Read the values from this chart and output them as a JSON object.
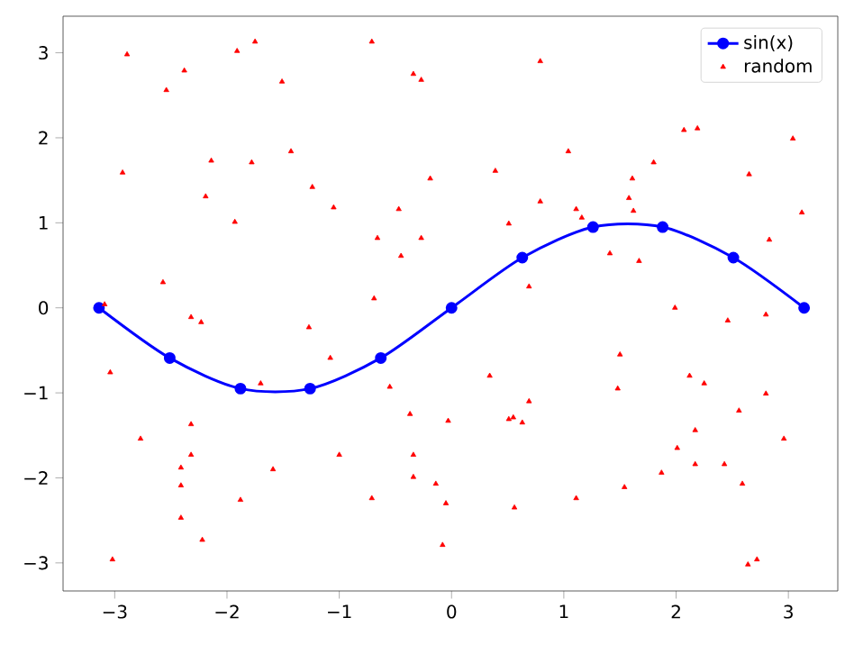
{
  "chart_data": {
    "type": "scatter",
    "xlim": [
      -3.46,
      3.44
    ],
    "ylim": [
      -3.33,
      3.43
    ],
    "xticks": [
      {
        "value": -3,
        "label": "−3"
      },
      {
        "value": -2,
        "label": "−2"
      },
      {
        "value": -1,
        "label": "−1"
      },
      0,
      1,
      2,
      3
    ],
    "yticks": [
      {
        "value": -3,
        "label": "−3"
      },
      {
        "value": -2,
        "label": "−2"
      },
      {
        "value": -1,
        "label": "−1"
      },
      0,
      1,
      2,
      3
    ],
    "legend": "top right",
    "series": [
      {
        "name": "sin(x)",
        "type": "line",
        "color": "#0000ff",
        "marker": "circle",
        "x": [
          -3.14,
          -2.51,
          -1.88,
          -1.26,
          -0.63,
          0,
          0.63,
          1.26,
          1.88,
          2.51,
          3.14
        ],
        "values": [
          0,
          -0.59,
          -0.95,
          -0.95,
          -0.59,
          0,
          0.59,
          0.95,
          0.95,
          0.59,
          0
        ]
      },
      {
        "name": "random",
        "color": "#ff0000",
        "marker": "triangle",
        "x": [
          -2.89,
          -2.38,
          -2.54,
          -1.91,
          -1.75,
          -1.51,
          -0.71,
          -0.34,
          -0.27,
          -2.93,
          -2.14,
          -1.78,
          -1.43,
          -2.19,
          -1.93,
          -1.24,
          -1.05,
          -0.47,
          -0.19,
          -0.66,
          -0.27,
          -0.45,
          -2.57,
          -0.69,
          -3.09,
          -2.32,
          -2.23,
          0.79,
          2.07,
          2.19,
          3.04,
          1.04,
          0.39,
          1.8,
          1.61,
          2.65,
          0.79,
          1.58,
          1.62,
          1.11,
          1.16,
          3.12,
          0.51,
          2.83,
          1.41,
          1.67,
          0.69,
          1.99,
          2.46,
          2.8,
          -3.04,
          -1.7,
          -1.27,
          -1.08,
          -0.55,
          -2.77,
          -2.32,
          -2.32,
          -2.41,
          -2.41,
          -2.41,
          -2.22,
          -3.02,
          -1.59,
          -1.88,
          -1.0,
          -0.71,
          -0.37,
          -0.34,
          -0.34,
          -0.14,
          -0.05,
          -0.08,
          -0.03,
          0.34,
          0.69,
          0.51,
          0.55,
          0.63,
          0.56,
          1.11,
          1.5,
          1.48,
          1.54,
          1.87,
          2.01,
          2.17,
          2.12,
          2.25,
          2.17,
          2.43,
          2.56,
          2.8,
          2.59,
          2.96,
          2.64,
          2.72
        ],
        "values": [
          2.98,
          2.79,
          2.56,
          3.02,
          3.13,
          2.66,
          3.13,
          2.75,
          2.68,
          1.59,
          1.73,
          1.71,
          1.84,
          1.31,
          1.01,
          1.42,
          1.18,
          1.16,
          1.52,
          0.82,
          0.82,
          0.61,
          0.3,
          0.11,
          0.04,
          -0.11,
          -0.17,
          2.9,
          2.09,
          2.11,
          1.99,
          1.84,
          1.61,
          1.71,
          1.52,
          1.57,
          1.25,
          1.29,
          1.14,
          1.16,
          1.06,
          1.12,
          0.99,
          0.8,
          0.64,
          0.55,
          0.25,
          0.0,
          -0.15,
          -0.08,
          -0.76,
          -0.89,
          -0.23,
          -0.59,
          -0.93,
          -1.54,
          -1.37,
          -1.73,
          -1.88,
          -2.09,
          -2.47,
          -2.73,
          -2.96,
          -1.9,
          -2.26,
          -1.73,
          -2.24,
          -1.25,
          -1.73,
          -1.99,
          -2.07,
          -2.3,
          -2.79,
          -1.33,
          -0.8,
          -1.1,
          -1.31,
          -1.29,
          -1.35,
          -2.35,
          -2.24,
          -0.55,
          -0.95,
          -2.11,
          -1.94,
          -1.65,
          -1.44,
          -0.8,
          -0.89,
          -1.84,
          -1.84,
          -1.21,
          -1.01,
          -2.07,
          -1.54,
          -3.02,
          -2.96
        ]
      }
    ]
  }
}
